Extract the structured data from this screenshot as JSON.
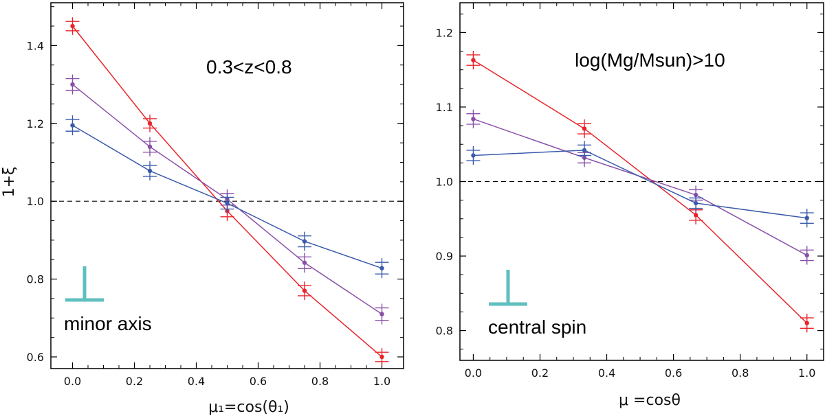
{
  "chart_data": [
    {
      "type": "line",
      "xlabel": "μ₁=cos(θ₁)",
      "ylabel": "1+ξ",
      "xlim": [
        -0.07,
        1.07
      ],
      "ylim": [
        0.57,
        1.51
      ],
      "xticks": [
        "0.0",
        "0.2",
        "0.4",
        "0.6",
        "0.8",
        "1.0"
      ],
      "xtick_values": [
        0.0,
        0.2,
        0.4,
        0.6,
        0.8,
        1.0
      ],
      "yticks": [
        "0.6",
        "0.8",
        "1.0",
        "1.2",
        "1.4"
      ],
      "ytick_values": [
        0.6,
        0.8,
        1.0,
        1.2,
        1.4
      ],
      "reference_line": 1.0,
      "annotation": "0.3<z<0.8",
      "label_text": "minor axis",
      "symbol_color": "#5fbfbf",
      "series": [
        {
          "color": "#e8242a",
          "x": [
            0.0,
            0.25,
            0.5,
            0.75,
            1.0
          ],
          "y": [
            1.45,
            1.2,
            0.975,
            0.77,
            0.6
          ],
          "err": [
            0.012,
            0.012,
            0.015,
            0.013,
            0.012
          ]
        },
        {
          "color": "#8a50a8",
          "x": [
            0.0,
            0.25,
            0.5,
            0.75,
            1.0
          ],
          "y": [
            1.3,
            1.14,
            1.005,
            0.842,
            0.71
          ],
          "err": [
            0.015,
            0.014,
            0.015,
            0.015,
            0.016
          ]
        },
        {
          "color": "#3a5bab",
          "x": [
            0.0,
            0.25,
            0.5,
            0.75,
            1.0
          ],
          "y": [
            1.195,
            1.078,
            0.995,
            0.897,
            0.828
          ],
          "err": [
            0.015,
            0.014,
            0.015,
            0.014,
            0.015
          ]
        }
      ]
    },
    {
      "type": "line",
      "xlabel": "μ =cosθ",
      "ylabel": "",
      "xlim": [
        -0.04,
        1.05
      ],
      "ylim": [
        0.76,
        1.24
      ],
      "xticks": [
        "0.0",
        "0.2",
        "0.4",
        "0.6",
        "0.8",
        "1.0"
      ],
      "xtick_values": [
        0.0,
        0.2,
        0.4,
        0.6,
        0.8,
        1.0
      ],
      "yticks": [
        "0.8",
        "0.9",
        "1.0",
        "1.1",
        "1.2"
      ],
      "ytick_values": [
        0.8,
        0.9,
        1.0,
        1.1,
        1.2
      ],
      "reference_line": 1.0,
      "annotation": "log(Mg/Msun)>10",
      "label_text": "central spin",
      "symbol_color": "#5fbfbf",
      "series": [
        {
          "color": "#e8242a",
          "x": [
            0.0,
            0.333,
            0.667,
            1.0
          ],
          "y": [
            1.163,
            1.071,
            0.955,
            0.81
          ],
          "err": [
            0.007,
            0.007,
            0.007,
            0.007
          ]
        },
        {
          "color": "#8a50a8",
          "x": [
            0.0,
            0.333,
            0.667,
            1.0
          ],
          "y": [
            1.084,
            1.032,
            0.982,
            0.901
          ],
          "err": [
            0.007,
            0.007,
            0.007,
            0.007
          ]
        },
        {
          "color": "#3a5bab",
          "x": [
            0.0,
            0.333,
            0.667,
            1.0
          ],
          "y": [
            1.035,
            1.042,
            0.971,
            0.951
          ],
          "err": [
            0.007,
            0.007,
            0.007,
            0.007
          ]
        }
      ]
    }
  ]
}
